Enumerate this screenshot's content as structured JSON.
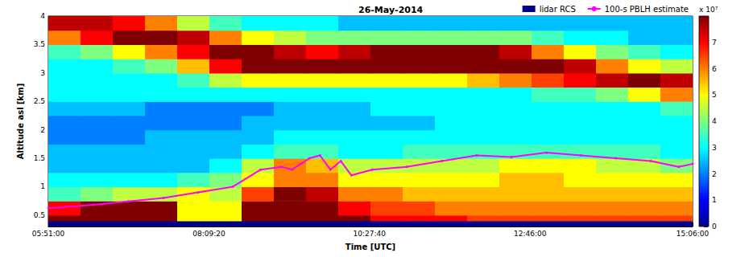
{
  "chart_data": {
    "type": "heatmap",
    "title": "26-May-2014",
    "x_label": "Time [UTC]",
    "y_label": "Altitude asl [km]",
    "xlim": [
      5.85,
      15.1
    ],
    "xticks": [
      {
        "value": 5.85,
        "label": "05:51:00"
      },
      {
        "value": 8.155556,
        "label": "08:09:20"
      },
      {
        "value": 10.461111,
        "label": "10:27:40"
      },
      {
        "value": 12.766667,
        "label": "12:46:00"
      },
      {
        "value": 15.1,
        "label": "15:06:00"
      }
    ],
    "ylim": [
      0.3,
      4
    ],
    "yticks": [
      0.5,
      1,
      1.5,
      2,
      2.5,
      3,
      3.5,
      4
    ],
    "legend": "upper right",
    "colorbar": {
      "range": [
        0,
        8
      ],
      "ticks": [
        0,
        1,
        2,
        3,
        4,
        5,
        6,
        7
      ],
      "label": "x 10⁷"
    },
    "series": [
      {
        "name": "lidar RCS",
        "type": "heatmap",
        "color": "#00008f",
        "x_edges": [
          5.85,
          6.3125,
          6.775,
          7.2375,
          7.7,
          8.1625,
          8.625,
          9.0875,
          9.55,
          10.0125,
          10.475,
          10.9375,
          11.4,
          11.8625,
          12.325,
          12.7875,
          13.25,
          13.7125,
          14.175,
          14.6375,
          15.1
        ],
        "y_edges": [
          0.3,
          0.4,
          0.5,
          0.75,
          1.0,
          1.25,
          1.5,
          1.75,
          2.0,
          2.25,
          2.5,
          2.75,
          3.0,
          3.25,
          3.5,
          3.75,
          4.0
        ],
        "cells": [
          [
            0,
            0,
            0,
            0,
            0,
            0,
            0,
            0,
            0,
            0,
            0,
            0,
            0,
            0,
            0,
            0,
            0,
            0,
            0,
            0
          ],
          [
            8,
            8,
            8,
            8,
            5,
            5,
            8,
            8,
            8,
            8,
            7,
            7,
            7,
            6.5,
            6.5,
            6.5,
            6.5,
            6.5,
            6.5,
            6.5
          ],
          [
            7,
            8,
            8,
            8,
            5,
            5,
            8,
            8,
            8,
            7,
            6.5,
            6.5,
            6,
            6,
            6,
            6,
            6,
            6,
            6,
            6
          ],
          [
            3.5,
            4,
            4.5,
            4.5,
            5,
            4.5,
            6.5,
            8,
            7.5,
            6,
            6,
            5.5,
            5.5,
            5.5,
            5.5,
            5.5,
            5.5,
            5.5,
            5.5,
            5.5
          ],
          [
            3,
            3,
            3,
            3,
            3.5,
            4,
            5,
            6,
            6,
            5,
            5,
            5,
            5,
            5,
            5.5,
            5.5,
            5,
            5,
            5,
            5
          ],
          [
            2.5,
            2.5,
            2.5,
            2.5,
            2.5,
            3,
            4.5,
            6,
            5.5,
            4.5,
            4.5,
            4.5,
            4.5,
            4.5,
            5,
            5,
            5,
            4.5,
            4.5,
            4
          ],
          [
            2.5,
            2.5,
            2.5,
            2.5,
            2.5,
            2.5,
            3,
            3.5,
            3.5,
            3,
            3,
            3.5,
            3.5,
            3.5,
            3.5,
            3.5,
            3.5,
            3.5,
            3.5,
            3
          ],
          [
            2,
            2,
            2,
            2.5,
            2.5,
            2.5,
            2.5,
            3,
            3,
            3,
            3,
            3,
            3,
            3,
            3,
            3,
            3,
            3,
            3,
            3
          ],
          [
            2,
            2,
            2,
            2,
            2,
            2,
            2.5,
            2.5,
            2.5,
            2.5,
            2.5,
            2.5,
            3,
            3,
            3,
            3,
            3,
            3,
            3,
            3
          ],
          [
            2.5,
            2.5,
            2.5,
            2,
            2,
            2,
            2,
            2.5,
            2.5,
            2.5,
            3,
            3,
            3,
            3,
            3,
            3,
            3,
            3,
            3,
            3.5
          ],
          [
            3,
            3,
            3,
            3,
            3,
            3,
            3,
            3,
            3,
            3,
            3,
            3,
            3,
            3,
            3,
            3.5,
            3.5,
            4,
            5,
            6
          ],
          [
            3,
            3,
            3,
            3,
            3.5,
            4.5,
            5,
            5,
            5,
            5,
            5,
            5,
            5,
            5.5,
            6,
            6.5,
            7,
            7.5,
            8,
            7.5
          ],
          [
            3,
            3,
            3.5,
            4,
            5.5,
            7,
            8,
            8,
            8,
            8,
            8,
            8,
            8,
            8,
            8,
            8,
            7.5,
            6,
            5,
            4.5
          ],
          [
            3.5,
            4,
            5,
            6,
            7,
            8,
            8,
            7.5,
            7,
            7.5,
            8,
            8,
            8,
            8,
            7.5,
            6,
            5,
            4,
            3.5,
            3
          ],
          [
            6,
            7,
            8,
            8,
            7.5,
            6,
            5,
            4.5,
            4,
            4,
            4,
            4,
            4,
            4,
            4,
            3.5,
            3,
            3,
            2.5,
            2.5
          ],
          [
            7.5,
            7.5,
            7,
            6,
            4.5,
            3.5,
            3,
            3,
            3,
            2.5,
            2.5,
            2.5,
            2.5,
            2.5,
            2.5,
            2.5,
            2.5,
            2.5,
            2.5,
            2.5
          ]
        ]
      },
      {
        "name": "100-s PBLH estimate",
        "type": "line",
        "color": "#ff00ff",
        "marker": "o",
        "x": [
          5.85,
          6.5,
          7.0,
          7.5,
          8.0,
          8.5,
          8.9,
          9.2,
          9.35,
          9.6,
          9.75,
          9.9,
          10.05,
          10.2,
          10.5,
          11.0,
          11.5,
          12.0,
          12.5,
          13.0,
          13.5,
          14.0,
          14.5,
          14.9,
          15.1
        ],
        "values": [
          0.62,
          0.68,
          0.74,
          0.8,
          0.9,
          1.0,
          1.3,
          1.35,
          1.3,
          1.5,
          1.55,
          1.3,
          1.45,
          1.2,
          1.3,
          1.35,
          1.45,
          1.55,
          1.52,
          1.6,
          1.55,
          1.5,
          1.45,
          1.35,
          1.4
        ]
      }
    ]
  }
}
